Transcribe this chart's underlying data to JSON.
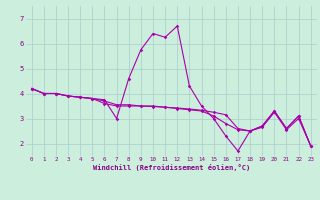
{
  "xlabel": "Windchill (Refroidissement éolien,°C)",
  "bg_color": "#cceedd",
  "line_color": "#aa00aa",
  "grid_color": "#aacccc",
  "axis_color": "#880088",
  "xlim": [
    -0.5,
    23.5
  ],
  "ylim": [
    1.5,
    7.5
  ],
  "xticks": [
    0,
    1,
    2,
    3,
    4,
    5,
    6,
    7,
    8,
    9,
    10,
    11,
    12,
    13,
    14,
    15,
    16,
    17,
    18,
    19,
    20,
    21,
    22,
    23
  ],
  "yticks": [
    2,
    3,
    4,
    5,
    6,
    7
  ],
  "series": [
    [
      4.2,
      4.0,
      4.0,
      3.9,
      3.85,
      3.8,
      3.75,
      3.0,
      4.6,
      5.75,
      6.4,
      6.25,
      6.7,
      4.3,
      3.5,
      3.0,
      2.3,
      1.7,
      2.5,
      2.7,
      3.3,
      2.6,
      3.1,
      1.9
    ],
    [
      4.2,
      4.0,
      4.0,
      3.9,
      3.85,
      3.8,
      3.6,
      3.5,
      3.5,
      3.5,
      3.5,
      3.45,
      3.4,
      3.35,
      3.3,
      3.1,
      2.8,
      2.55,
      2.5,
      2.65,
      3.25,
      2.55,
      3.0,
      1.9
    ],
    [
      4.2,
      4.0,
      4.0,
      3.9,
      3.85,
      3.8,
      3.7,
      3.55,
      3.55,
      3.5,
      3.48,
      3.45,
      3.42,
      3.38,
      3.33,
      3.25,
      3.15,
      2.6,
      2.5,
      2.7,
      3.3,
      2.6,
      3.1,
      1.9
    ]
  ]
}
